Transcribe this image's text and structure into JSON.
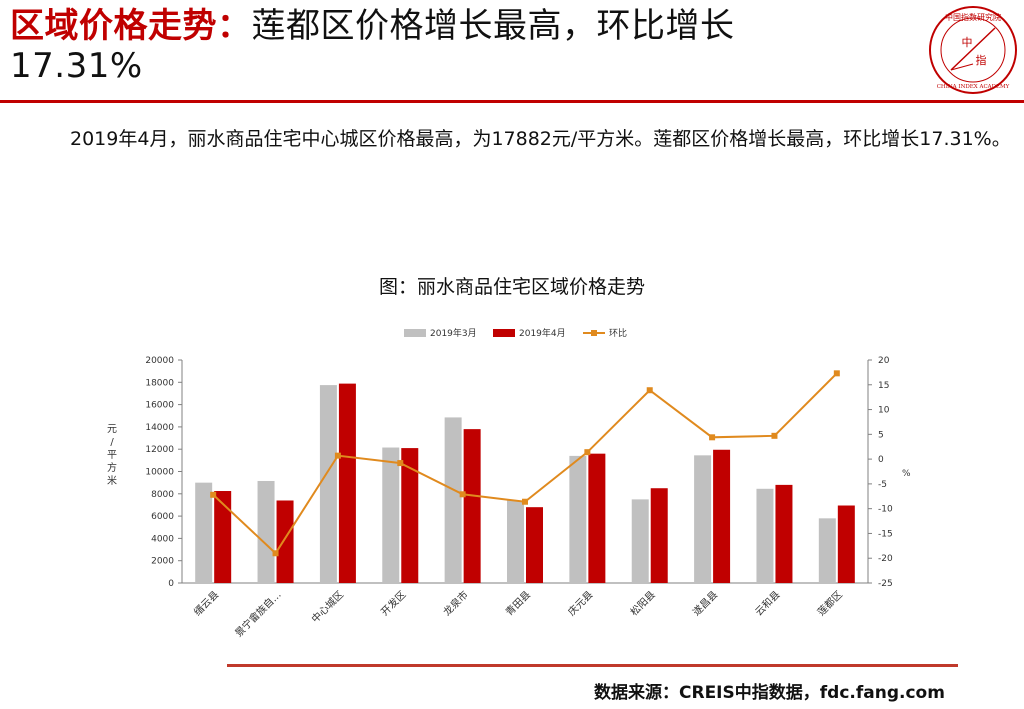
{
  "header": {
    "title_red": "区域价格走势：",
    "title_black_line1": "莲都区价格增长最高，环比增长",
    "title_black_line2": "17.31%",
    "seal_text": "中国指数研究院",
    "seal_english": "CHINA INDEX ACADEMY",
    "seal_center_1": "中",
    "seal_center_2": "指"
  },
  "summary": {
    "paragraph": "2019年4月，丽水商品住宅中心城区价格最高，为17882元/平方米。莲都区价格增长最高，环比增长17.31%。"
  },
  "footer": {
    "source": "数据来源：CREIS中指数据，fdc.fang.com"
  },
  "colors": {
    "accent": "#c00000",
    "bar_march": "#c0c0c0",
    "bar_april": "#c00000",
    "line_mom": "#e08a1e"
  },
  "chart_data": {
    "type": "bar",
    "title": "图：丽水商品住宅区域价格走势",
    "categories": [
      "缙云县",
      "景宁畲族自…",
      "中心城区",
      "开发区",
      "龙泉市",
      "青田县",
      "庆元县",
      "松阳县",
      "遂昌县",
      "云和县",
      "莲都区"
    ],
    "series": [
      {
        "name": "2019年3月",
        "type": "bar",
        "axis": "left",
        "values": [
          9000,
          9150,
          17750,
          12150,
          14850,
          7400,
          11400,
          7500,
          11450,
          8450,
          5800
        ]
      },
      {
        "name": "2019年4月",
        "type": "bar",
        "axis": "left",
        "values": [
          8250,
          7400,
          17882,
          12100,
          13800,
          6800,
          11600,
          8500,
          11950,
          8800,
          6950
        ]
      },
      {
        "name": "环比",
        "type": "line",
        "axis": "right",
        "values": [
          -7.2,
          -19.0,
          0.7,
          -0.8,
          -7.1,
          -8.6,
          1.4,
          13.9,
          4.4,
          4.7,
          17.31
        ]
      }
    ],
    "ylabel": "元/平方米",
    "y2label": "%",
    "ylim": [
      0,
      20000
    ],
    "y2lim": [
      -25,
      20
    ],
    "yticks": [
      "0",
      "2000",
      "4000",
      "6000",
      "8000",
      "10000",
      "12000",
      "14000",
      "16000",
      "18000",
      "20000"
    ],
    "y2ticks": [
      "-25",
      "-20",
      "-15",
      "-10",
      "-5",
      "0",
      "5",
      "10",
      "15",
      "20"
    ],
    "legend_position": "top",
    "grid": false
  }
}
